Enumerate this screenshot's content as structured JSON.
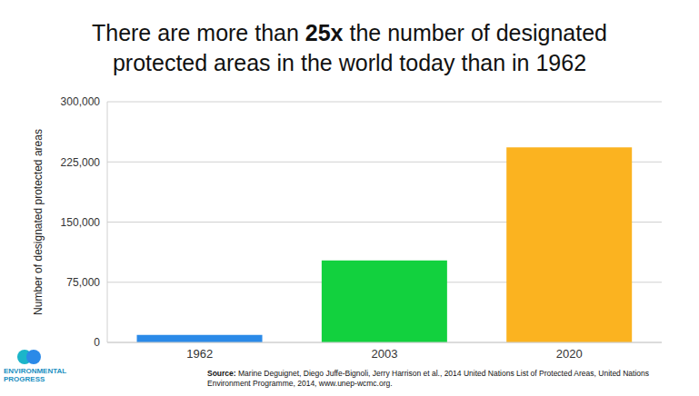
{
  "chart_data": {
    "type": "bar",
    "title": "There are more than 25x the number of designated protected areas in the world today than in 1962",
    "y_label": "Number of designated protected areas",
    "categories": [
      "1962",
      "2003",
      "2020"
    ],
    "values": [
      9214,
      102102,
      243000
    ],
    "colors": [
      "#2b8ae8",
      "#12d13e",
      "#fbb320"
    ],
    "ylim": [
      0,
      300000
    ],
    "yticks": [
      0,
      {
        "value": 75000,
        "label": "75,000"
      },
      {
        "value": 150000,
        "label": "150,000"
      },
      {
        "value": 225000,
        "label": "225,000"
      },
      {
        "value": 300000,
        "label": "300,000"
      }
    ],
    "grid": true,
    "source": "Source: Marine Deguignet, Diego Juffe-Bignoli, Jerry Harrison et al., 2014 United Nations List of Protected Areas, United Nations Environment Programme, 2014, www.unep-wcmc.org.",
    "logo": [
      "ENVIRONMENTAL",
      "PROGRESS"
    ]
  }
}
